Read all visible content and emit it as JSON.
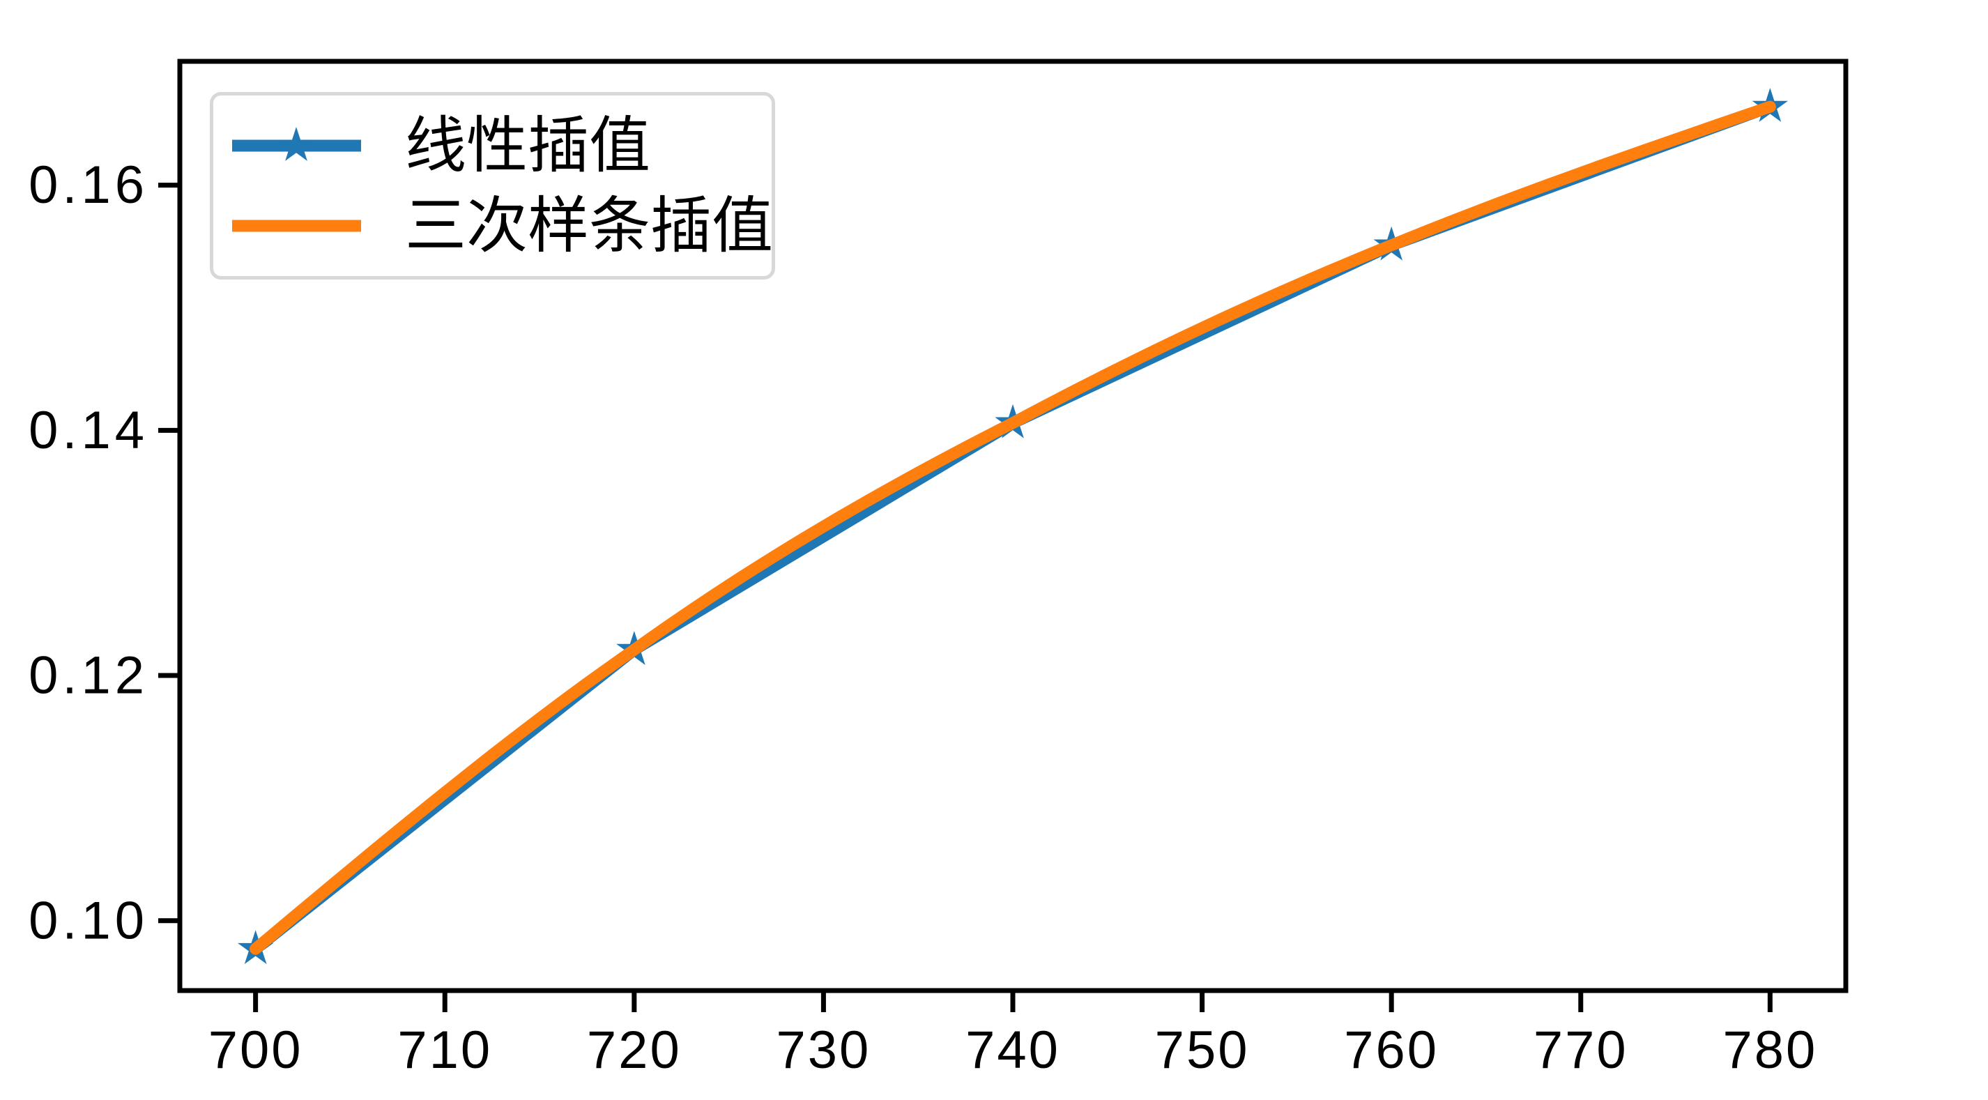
{
  "figure": {
    "background": "#ffffff",
    "plot_border_color": "#000000"
  },
  "chart_data": {
    "type": "line",
    "title": "",
    "xlabel": "",
    "ylabel": "",
    "x": [
      700,
      720,
      740,
      760,
      780
    ],
    "series": [
      {
        "name": "线性插值",
        "color": "#1f77b4",
        "marker": "star",
        "interpolation": "linear",
        "values": [
          0.0977,
          0.1221,
          0.1406,
          0.1551,
          0.1664
        ]
      },
      {
        "name": "三次样条插值",
        "color": "#ff7f0e",
        "marker": "none",
        "interpolation": "cubic-spline",
        "values": [
          0.0977,
          0.1221,
          0.1406,
          0.1551,
          0.1664
        ]
      }
    ],
    "xlim": [
      696,
      784
    ],
    "ylim": [
      0.0943,
      0.1701
    ],
    "x_ticks": {
      "values": [
        700,
        710,
        720,
        730,
        740,
        750,
        760,
        770,
        780
      ],
      "labels": [
        "700",
        "710",
        "720",
        "730",
        "740",
        "750",
        "760",
        "770",
        "780"
      ]
    },
    "y_ticks": {
      "values": [
        0.1,
        0.12,
        0.14,
        0.16
      ],
      "labels": [
        "0.10",
        "0.12",
        "0.14",
        "0.16"
      ]
    },
    "grid": false,
    "legend": {
      "position": "upper left",
      "entries": [
        "线性插值",
        "三次样条插值"
      ]
    }
  }
}
